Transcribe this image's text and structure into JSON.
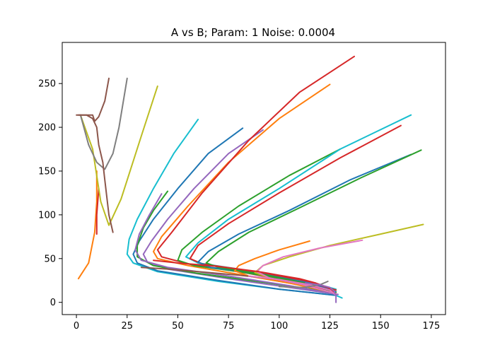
{
  "chart_data": {
    "type": "line",
    "title": "A vs B; Param: 1 Noise: 0.0004",
    "xlabel": "",
    "ylabel": "",
    "xlim": [
      -7,
      182
    ],
    "ylim": [
      -14,
      297
    ],
    "xticks": [
      0,
      25,
      50,
      75,
      100,
      125,
      150,
      175
    ],
    "yticks": [
      0,
      50,
      100,
      150,
      200,
      250
    ],
    "grid": false,
    "legend": "none",
    "color_cycle": [
      "#1f77b4",
      "#ff7f0e",
      "#2ca02c",
      "#d62728",
      "#9467bd",
      "#8c564b",
      "#e377c2",
      "#7f7f7f",
      "#bcbd22",
      "#17becf"
    ],
    "series": [
      {
        "color": "#ff7f0e",
        "x": [
          1,
          6,
          9,
          10,
          10
        ],
        "y": [
          27,
          45,
          80,
          115,
          150
        ]
      },
      {
        "color": "#d62728",
        "x": [
          10,
          10,
          11
        ],
        "y": [
          78,
          100,
          130
        ]
      },
      {
        "color": "#bcbd22",
        "x": [
          2,
          8,
          12,
          16,
          22,
          32,
          40
        ],
        "y": [
          214,
          175,
          115,
          88,
          118,
          190,
          247
        ]
      },
      {
        "color": "#7f7f7f",
        "x": [
          2,
          6,
          10,
          14,
          18,
          21,
          25
        ],
        "y": [
          214,
          180,
          160,
          152,
          170,
          200,
          256
        ]
      },
      {
        "color": "#8c564b",
        "x": [
          1,
          5,
          8,
          9,
          11,
          14,
          16
        ],
        "y": [
          214,
          214,
          214,
          207,
          212,
          230,
          256
        ]
      },
      {
        "color": "#8c564b",
        "x": [
          0,
          5,
          8,
          10,
          11,
          13,
          14,
          15,
          16,
          18
        ],
        "y": [
          214,
          214,
          210,
          200,
          180,
          160,
          140,
          120,
          100,
          80
        ]
      },
      {
        "color": "#17becf",
        "x": [
          60,
          48,
          38,
          30,
          26,
          25,
          28,
          40,
          70,
          100,
          128,
          131
        ],
        "y": [
          209,
          170,
          130,
          95,
          72,
          55,
          45,
          35,
          24,
          15,
          8,
          5
        ]
      },
      {
        "color": "#1f77b4",
        "x": [
          82,
          65,
          50,
          38,
          31,
          28,
          30,
          40,
          70,
          100,
          128
        ],
        "y": [
          199,
          170,
          130,
          95,
          70,
          55,
          45,
          36,
          25,
          15,
          8
        ]
      },
      {
        "color": "#9467bd",
        "x": [
          92,
          75,
          58,
          45,
          37,
          33,
          35,
          45,
          75,
          105,
          129
        ],
        "y": [
          197,
          170,
          130,
          95,
          70,
          55,
          46,
          38,
          27,
          17,
          9
        ]
      },
      {
        "color": "#ff7f0e",
        "x": [
          125,
          100,
          75,
          55,
          42,
          38,
          40,
          55,
          85,
          110,
          128
        ],
        "y": [
          249,
          210,
          160,
          110,
          75,
          58,
          50,
          42,
          30,
          20,
          10
        ]
      },
      {
        "color": "#d62728",
        "x": [
          137,
          110,
          85,
          62,
          47,
          40,
          42,
          55,
          85,
          110,
          128
        ],
        "y": [
          281,
          240,
          185,
          125,
          80,
          60,
          52,
          44,
          33,
          22,
          12
        ]
      },
      {
        "color": "#2ca02c",
        "x": [
          45,
          38,
          33,
          30,
          30,
          38,
          60,
          95,
          125
        ],
        "y": [
          127,
          105,
          85,
          65,
          52,
          42,
          33,
          22,
          12
        ]
      },
      {
        "color": "#9467bd",
        "x": [
          42,
          36,
          31,
          29,
          32,
          45,
          75,
          105,
          127
        ],
        "y": [
          124,
          100,
          78,
          60,
          48,
          40,
          30,
          19,
          10
        ]
      },
      {
        "color": "#2ca02c",
        "x": [
          130,
          105,
          80,
          62,
          52,
          50,
          58,
          80,
          110,
          128
        ],
        "y": [
          175,
          145,
          110,
          80,
          60,
          48,
          42,
          35,
          24,
          14
        ]
      },
      {
        "color": "#17becf",
        "x": [
          165,
          130,
          100,
          75,
          60,
          54,
          60,
          80,
          110,
          128
        ],
        "y": [
          214,
          175,
          130,
          95,
          68,
          52,
          45,
          38,
          26,
          15
        ]
      },
      {
        "color": "#d62728",
        "x": [
          160,
          130,
          100,
          75,
          60,
          56,
          62,
          85,
          112,
          128
        ],
        "y": [
          202,
          165,
          125,
          90,
          65,
          50,
          44,
          36,
          25,
          14
        ]
      },
      {
        "color": "#1f77b4",
        "x": [
          165,
          135,
          105,
          80,
          65,
          60,
          66,
          90,
          115,
          128
        ],
        "y": [
          169,
          140,
          105,
          78,
          58,
          46,
          40,
          33,
          22,
          12
        ]
      },
      {
        "color": "#2ca02c",
        "x": [
          170,
          140,
          110,
          85,
          70,
          64,
          70,
          92,
          115,
          128
        ],
        "y": [
          174,
          142,
          108,
          80,
          58,
          45,
          40,
          32,
          21,
          11
        ]
      },
      {
        "color": "#ff7f0e",
        "x": [
          115,
          100,
          88,
          80,
          78,
          85,
          105,
          125
        ],
        "y": [
          70,
          60,
          50,
          42,
          36,
          30,
          22,
          12
        ]
      },
      {
        "color": "#bcbd22",
        "x": [
          171,
          150,
          125,
          105,
          92,
          88,
          95,
          112,
          128
        ],
        "y": [
          89,
          78,
          65,
          52,
          42,
          34,
          28,
          20,
          10
        ]
      },
      {
        "color": "#e377c2",
        "x": [
          141,
          120,
          102,
          92,
          89,
          95,
          112,
          128
        ],
        "y": [
          71,
          62,
          52,
          42,
          35,
          28,
          20,
          10
        ]
      },
      {
        "color": "#d62728",
        "x": [
          38,
          50,
          60,
          70,
          80,
          90,
          100,
          110,
          118,
          124,
          127
        ],
        "y": [
          48,
          45,
          43,
          41,
          38,
          35,
          31,
          27,
          22,
          17,
          12
        ]
      },
      {
        "color": "#8c564b",
        "x": [
          32,
          45,
          60,
          80,
          100,
          115,
          125
        ],
        "y": [
          40,
          38,
          35,
          31,
          26,
          20,
          14
        ]
      },
      {
        "color": "#e377c2",
        "x": [
          85,
          100,
          115,
          125,
          128
        ],
        "y": [
          30,
          26,
          20,
          14,
          8
        ]
      },
      {
        "color": "#7f7f7f",
        "x": [
          100,
          112,
          120,
          124
        ],
        "y": [
          18,
          17,
          20,
          24
        ]
      },
      {
        "color": "#9467bd",
        "x": [
          113,
          120,
          125,
          127,
          128,
          128
        ],
        "y": [
          22,
          20,
          17,
          13,
          8,
          0
        ]
      }
    ]
  }
}
